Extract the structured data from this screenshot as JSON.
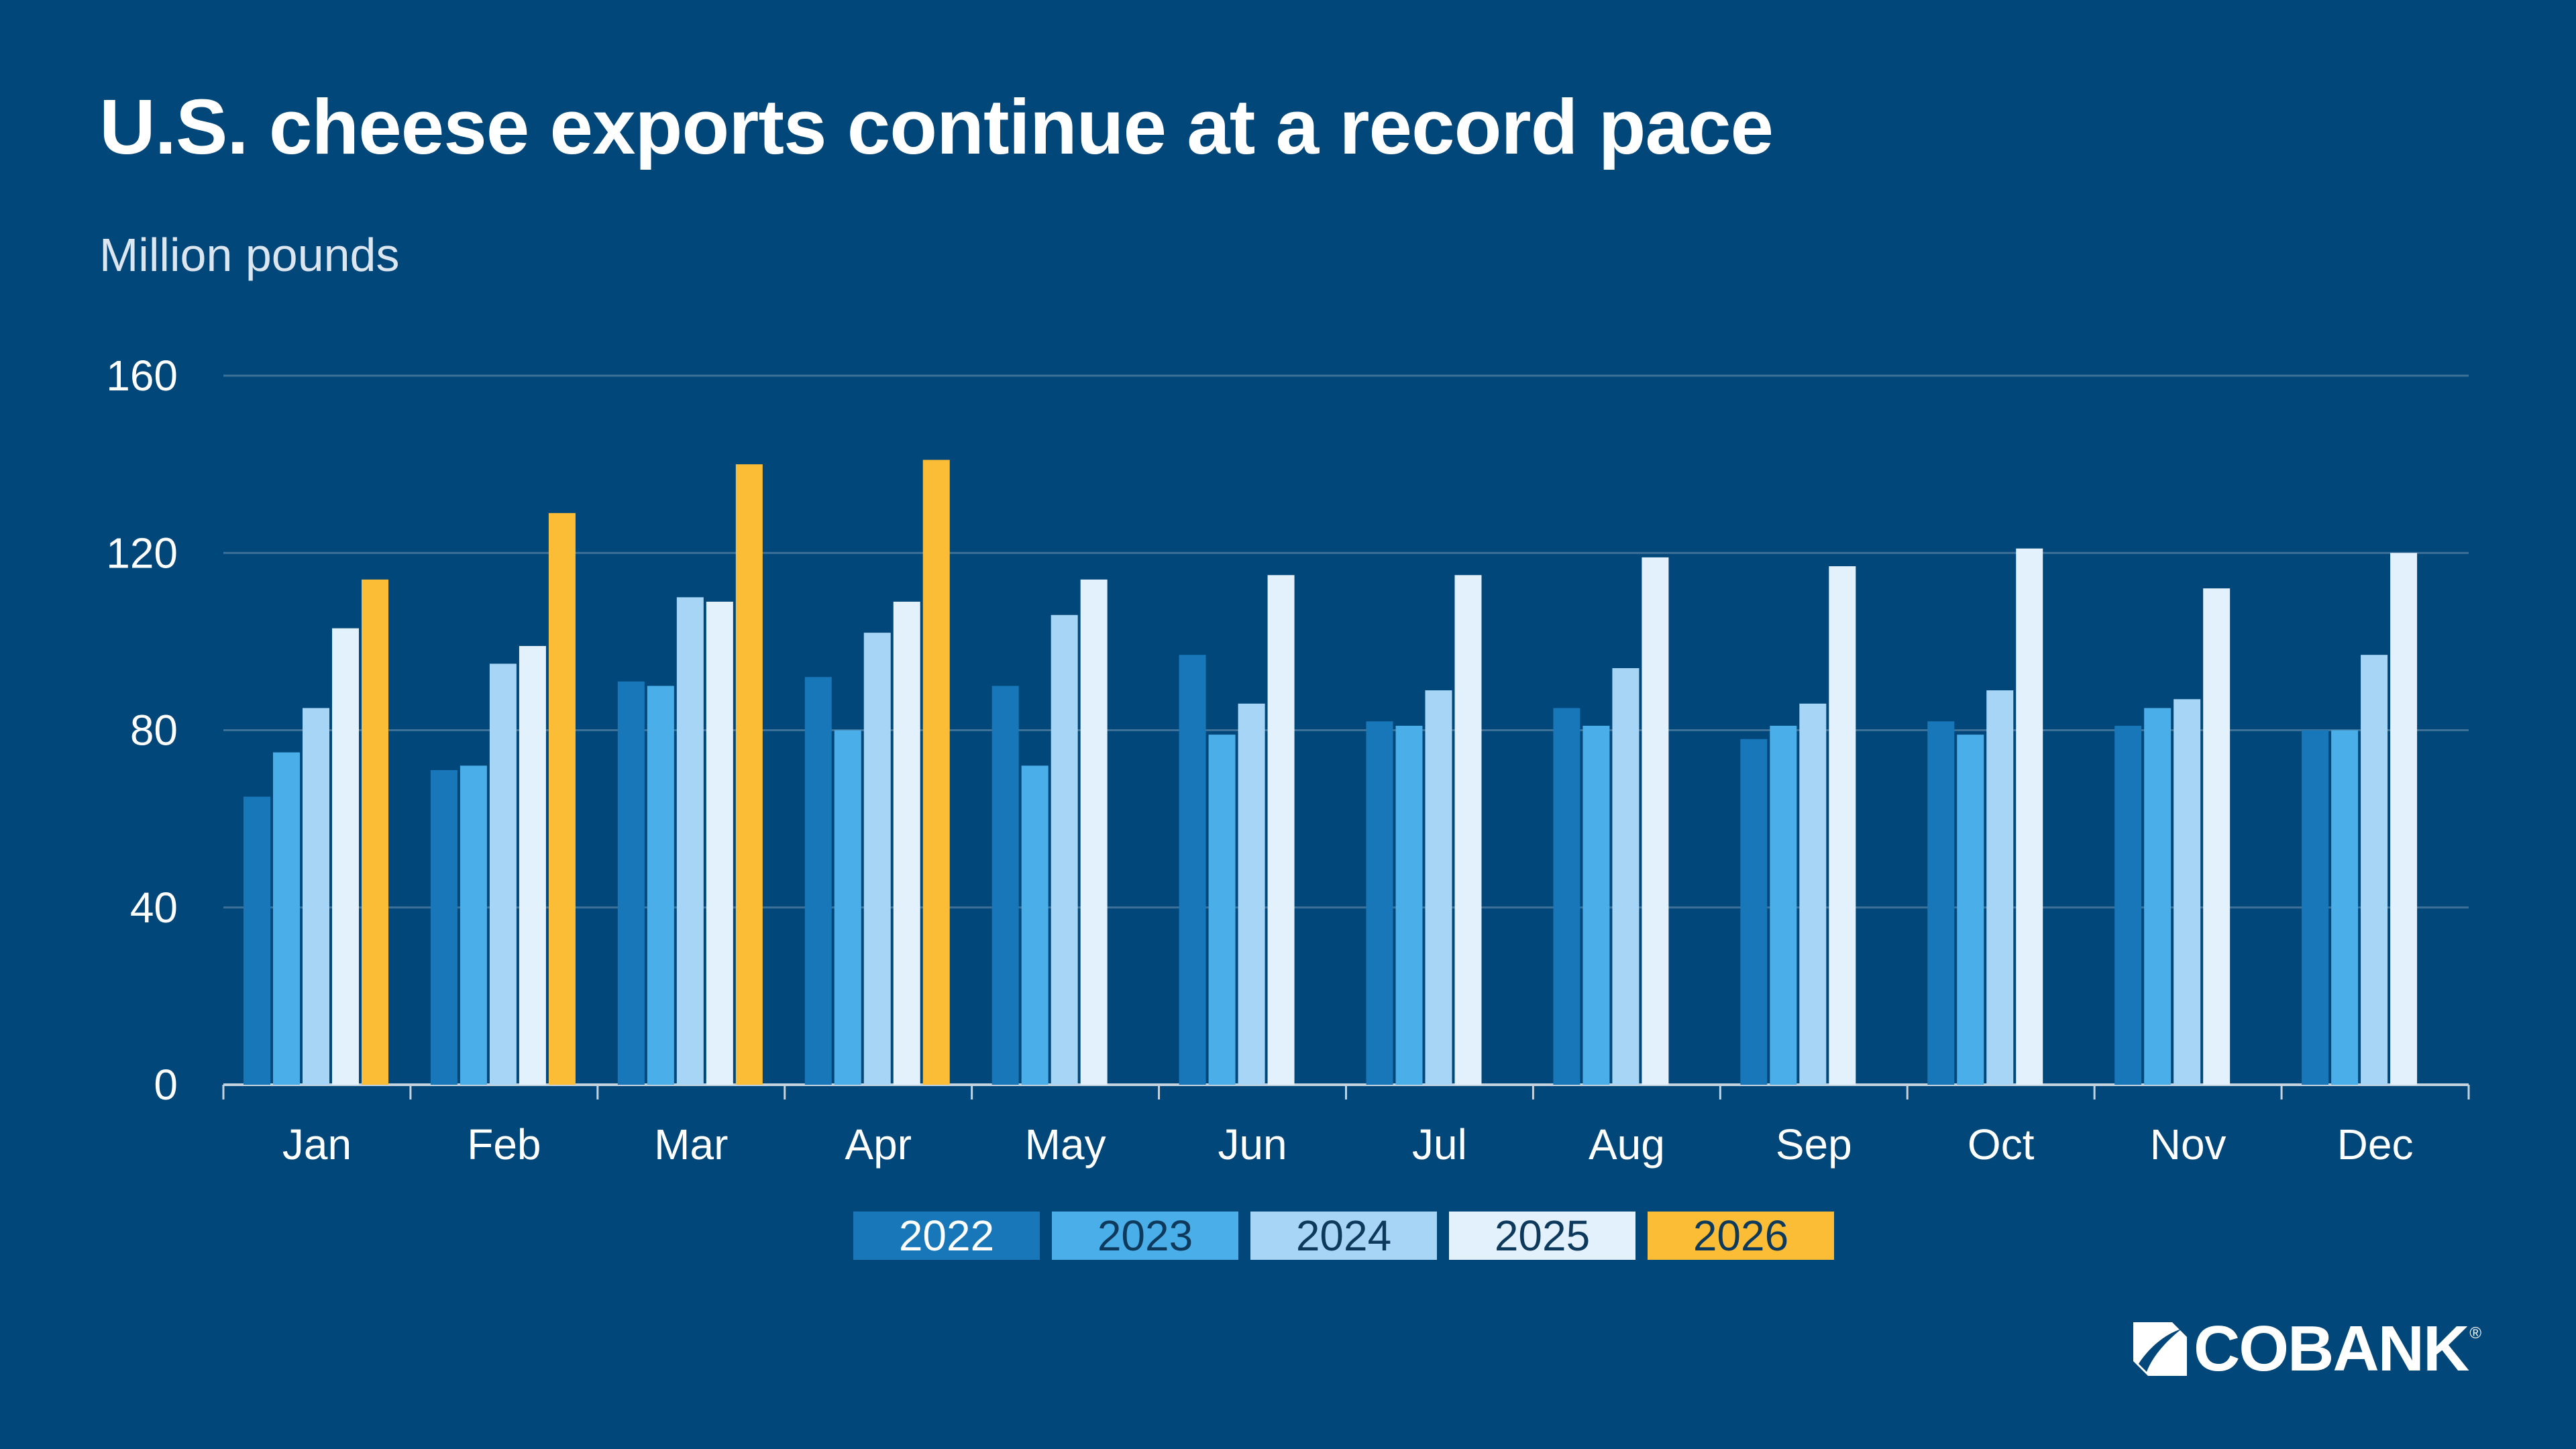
{
  "header": {
    "title": "U.S. cheese exports continue at a record pace",
    "subtitle": "Million pounds"
  },
  "brand": {
    "name": "COBANK",
    "registered_mark": "®"
  },
  "colors": {
    "background": "#02477a",
    "grid": "#3e7198",
    "axis": "#c5d3df",
    "series": [
      "#1877b8",
      "#4aaee8",
      "#a6d5f5",
      "#e2f1fc",
      "#fbbd36"
    ],
    "legend_text": [
      "#ffffff",
      "#0d3a5c",
      "#0d3a5c",
      "#0d3a5c",
      "#0d3a5c"
    ]
  },
  "chart_data": {
    "type": "bar",
    "title": "U.S. cheese exports continue at a record pace",
    "ylabel": "Million pounds",
    "xlabel": "",
    "ylim": [
      0,
      160
    ],
    "yticks": [
      0,
      40,
      80,
      120,
      160
    ],
    "grid": true,
    "legend_position": "bottom-center",
    "categories": [
      "Jan",
      "Feb",
      "Mar",
      "Apr",
      "May",
      "Jun",
      "Jul",
      "Aug",
      "Sep",
      "Oct",
      "Nov",
      "Dec"
    ],
    "series": [
      {
        "name": "2022",
        "values": [
          65,
          71,
          91,
          92,
          90,
          97,
          82,
          85,
          78,
          82,
          81,
          80
        ]
      },
      {
        "name": "2023",
        "values": [
          75,
          72,
          90,
          80,
          72,
          79,
          81,
          81,
          81,
          79,
          85,
          80
        ]
      },
      {
        "name": "2024",
        "values": [
          85,
          95,
          110,
          102,
          106,
          86,
          89,
          94,
          86,
          89,
          87,
          97
        ]
      },
      {
        "name": "2025",
        "values": [
          103,
          99,
          109,
          109,
          114,
          115,
          115,
          119,
          117,
          121,
          112,
          120
        ]
      },
      {
        "name": "2026",
        "values": [
          114,
          129,
          140,
          141,
          null,
          null,
          null,
          null,
          null,
          null,
          null,
          null
        ]
      }
    ]
  }
}
